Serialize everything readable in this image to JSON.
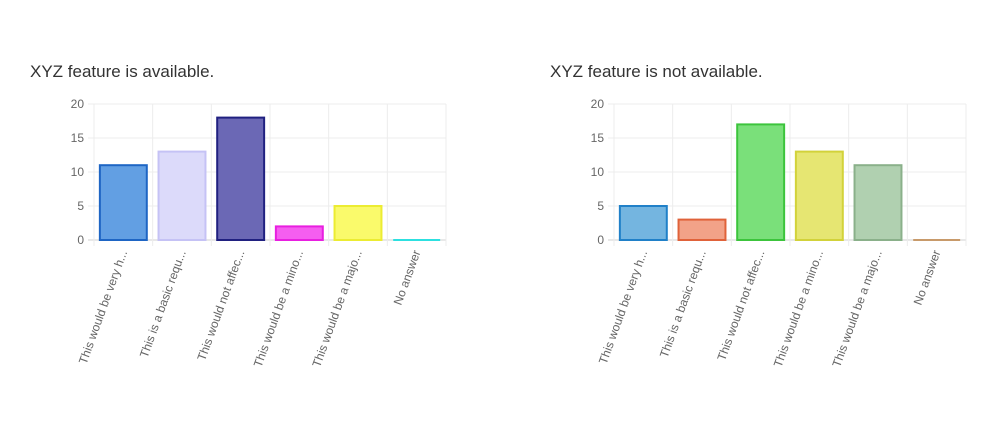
{
  "chart_data": [
    {
      "type": "bar",
      "title": "XYZ feature is available.",
      "xlabel": "",
      "ylabel": "",
      "ylim": [
        0,
        20
      ],
      "yticks": [
        0,
        5,
        10,
        15,
        20
      ],
      "grid": true,
      "categories": [
        "This would be very h...",
        "This is a basic requ...",
        "This would not affec...",
        "This would be a mino...",
        "This would be a majo...",
        "No answer"
      ],
      "values": [
        11,
        13,
        18,
        2,
        5,
        0
      ],
      "fill_colors": [
        "#629fe3",
        "#dcdafa",
        "#6b68b5",
        "#f55ef0",
        "#fafa6b",
        "#7ee8e8"
      ],
      "border_colors": [
        "#1e65c4",
        "#c5c2f5",
        "#202080",
        "#e81fe0",
        "#ecec32",
        "#2de0e0"
      ]
    },
    {
      "type": "bar",
      "title": "XYZ feature is not available.",
      "xlabel": "",
      "ylabel": "",
      "ylim": [
        0,
        20
      ],
      "yticks": [
        0,
        5,
        10,
        15,
        20
      ],
      "grid": true,
      "categories": [
        "This would be very h...",
        "This is a basic requ...",
        "This would not affec...",
        "This would be a mino...",
        "This would be a majo...",
        "No answer"
      ],
      "values": [
        5,
        3,
        17,
        13,
        11,
        0
      ],
      "fill_colors": [
        "#74b5e0",
        "#f2a288",
        "#7ae07a",
        "#e6e672",
        "#b0d0b0",
        "#e8c8a8"
      ],
      "border_colors": [
        "#2080c8",
        "#e0623a",
        "#3cc43c",
        "#d2d23a",
        "#8ab08a",
        "#c89a6a"
      ]
    }
  ]
}
